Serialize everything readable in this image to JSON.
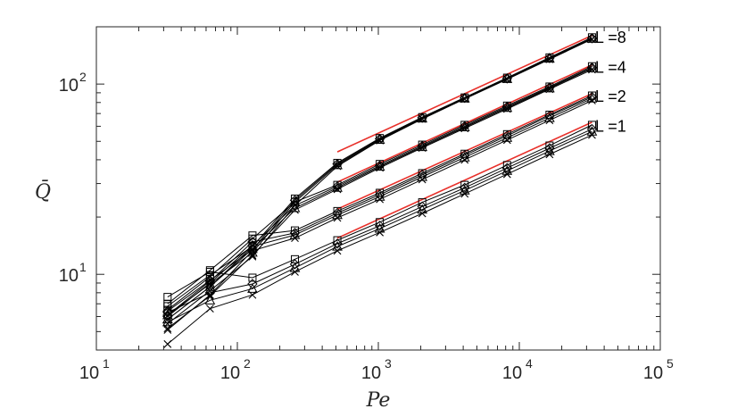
{
  "chart_data": {
    "type": "line",
    "xscale": "log",
    "yscale": "log",
    "xlabel": "Pe",
    "ylabel": "Q̄",
    "xlim": [
      10,
      100000
    ],
    "ylim": [
      4,
      200
    ],
    "grid": false,
    "x_ticks": [
      {
        "base": "10",
        "exp": "1"
      },
      {
        "base": "10",
        "exp": "2"
      },
      {
        "base": "10",
        "exp": "3"
      },
      {
        "base": "10",
        "exp": "4"
      },
      {
        "base": "10",
        "exp": "5"
      }
    ],
    "y_ticks": [
      {
        "value": 10,
        "base": "10",
        "exp": "1"
      },
      {
        "value": 100,
        "base": "10",
        "exp": "2"
      }
    ],
    "annotations": [
      {
        "text": "L =8",
        "x": 33000,
        "y": 176
      },
      {
        "text": "L =4",
        "x": 33000,
        "y": 122
      },
      {
        "text": "L =2",
        "x": 33000,
        "y": 86
      },
      {
        "text": "L =1",
        "x": 33000,
        "y": 60
      }
    ],
    "x": [
      32,
      64,
      128,
      256,
      512,
      1024,
      2048,
      4096,
      8192,
      16384,
      32768
    ],
    "groups": [
      {
        "label": "L =1",
        "series": [
          {
            "marker": "square",
            "values": [
              7.6,
              10.3,
              9.6,
              12.0,
              15.1,
              18.8,
              23.9,
              29.5,
              37.5,
              47.5,
              61.0
            ]
          },
          {
            "marker": "diamond",
            "values": [
              6.3,
              8.0,
              8.9,
              11.3,
              14.5,
              18.0,
              22.7,
              28.5,
              36.2,
              46.0,
              58.0
            ]
          },
          {
            "marker": "triangle",
            "values": [
              5.6,
              7.3,
              8.4,
              10.8,
              14.0,
              17.4,
              21.9,
              27.6,
              35.0,
              44.5,
              56.3
            ]
          },
          {
            "marker": "x",
            "values": [
              4.3,
              6.6,
              7.8,
              10.3,
              13.3,
              16.6,
              20.9,
              26.5,
              33.6,
              42.7,
              54.0
            ]
          }
        ],
        "fit": {
          "x": [
            512,
            32768
          ],
          "y": [
            15.5,
            63.0
          ]
        }
      },
      {
        "label": "L =2",
        "series": [
          {
            "marker": "square",
            "values": [
              7.0,
              10.5,
              16.0,
              17.0,
              21.5,
              26.8,
              34.0,
              43.0,
              54.5,
              69.0,
              87.0
            ]
          },
          {
            "marker": "diamond",
            "values": [
              6.1,
              9.2,
              14.8,
              16.5,
              21.0,
              26.2,
              33.3,
              42.2,
              53.5,
              68.0,
              85.5
            ]
          },
          {
            "marker": "triangle",
            "values": [
              5.8,
              8.6,
              14.0,
              16.1,
              20.5,
              25.6,
              32.5,
              41.2,
              52.2,
              66.3,
              84.0
            ]
          },
          {
            "marker": "x",
            "values": [
              5.1,
              7.8,
              13.3,
              15.5,
              19.8,
              24.8,
              31.5,
              40.0,
              50.8,
              64.5,
              82.0
            ]
          }
        ],
        "fit": {
          "x": [
            512,
            32768
          ],
          "y": [
            22.0,
            89.0
          ]
        }
      },
      {
        "label": "L =4",
        "series": [
          {
            "marker": "square",
            "values": [
              6.5,
              9.7,
              15.4,
              24.0,
              29.5,
              38.0,
              48.0,
              61.0,
              77.0,
              97.0,
              124.0
            ]
          },
          {
            "marker": "diamond",
            "values": [
              6.0,
              9.0,
              14.2,
              23.0,
              29.0,
              37.3,
              47.3,
              60.0,
              76.0,
              96.0,
              122.0
            ]
          },
          {
            "marker": "triangle",
            "values": [
              5.8,
              8.6,
              13.6,
              22.3,
              28.5,
              36.8,
              46.7,
              59.3,
              75.0,
              95.0,
              121.0
            ]
          },
          {
            "marker": "x",
            "values": [
              5.2,
              7.7,
              12.6,
              21.8,
              28.0,
              36.3,
              46.2,
              58.5,
              74.0,
              94.0,
              119.0
            ]
          }
        ],
        "fit": {
          "x": [
            512,
            32768
          ],
          "y": [
            30.5,
            126.0
          ]
        }
      },
      {
        "label": "L =8",
        "series": [
          {
            "marker": "square",
            "values": [
              6.8,
              9.9,
              14.0,
              25.0,
              38.5,
              52.0,
              67.0,
              85.0,
              108.0,
              138.0,
              176.0
            ]
          },
          {
            "marker": "diamond",
            "values": [
              6.4,
              9.3,
              13.5,
              24.5,
              38.0,
              51.5,
              66.5,
              84.5,
              107.0,
              137.0,
              174.0
            ]
          },
          {
            "marker": "triangle",
            "values": [
              6.1,
              8.9,
              13.0,
              24.0,
              37.5,
              51.0,
              66.0,
              84.0,
              106.5,
              136.0,
              173.0
            ]
          },
          {
            "marker": "x",
            "values": [
              5.5,
              8.2,
              12.4,
              23.0,
              37.0,
              50.5,
              65.5,
              83.5,
              106.0,
              135.0,
              172.0
            ]
          }
        ],
        "fit": {
          "x": [
            512,
            32768
          ],
          "y": [
            44.0,
            180.0
          ]
        }
      }
    ],
    "colors": {
      "data": "#000000",
      "fit": "#e8302a",
      "axis": "#262626",
      "background": "#ffffff"
    }
  }
}
